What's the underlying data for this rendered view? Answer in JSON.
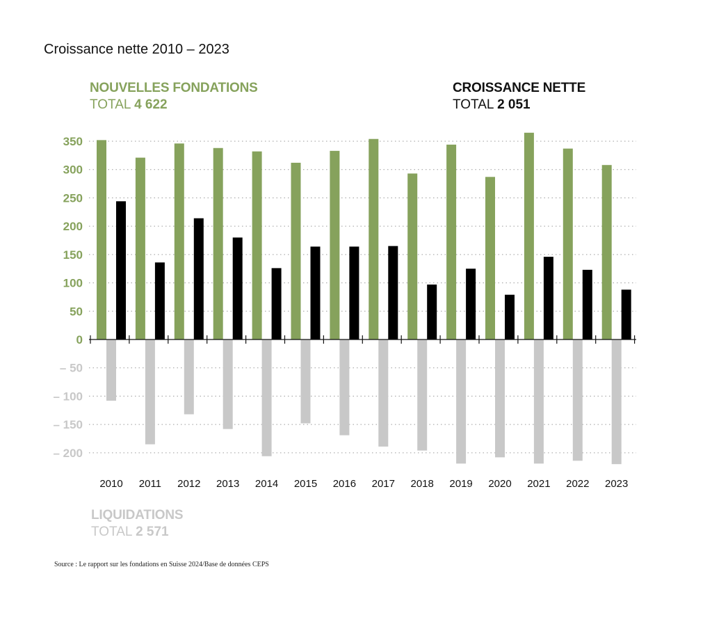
{
  "title": "Croissance nette 2010 – 2023",
  "legend": {
    "new": {
      "name": "NOUVELLES FONDATIONS",
      "total_label": "TOTAL",
      "total_value": "4 622"
    },
    "net": {
      "name": "CROISSANCE NETTE",
      "total_label": "TOTAL",
      "total_value": "2 051"
    },
    "liq": {
      "name": "LIQUIDATIONS",
      "total_label": "TOTAL",
      "total_value": "2 571"
    }
  },
  "source": "Source : Le rapport sur les fondations en Suisse 2024/Base de données CEPS",
  "colors": {
    "new": "#86a25c",
    "net": "#000000",
    "liq": "#c8c8c8",
    "grid": "#9a9a9a",
    "axis": "#111111"
  },
  "chart_data": {
    "type": "bar",
    "categories": [
      "2010",
      "2011",
      "2012",
      "2013",
      "2014",
      "2015",
      "2016",
      "2017",
      "2018",
      "2019",
      "2020",
      "2021",
      "2022",
      "2023"
    ],
    "series": [
      {
        "name": "NOUVELLES FONDATIONS",
        "values": [
          352,
          321,
          346,
          338,
          332,
          312,
          333,
          354,
          293,
          344,
          287,
          365,
          337,
          308
        ]
      },
      {
        "name": "CROISSANCE NETTE",
        "values": [
          244,
          136,
          214,
          180,
          126,
          164,
          164,
          165,
          97,
          125,
          79,
          146,
          123,
          88
        ]
      },
      {
        "name": "LIQUIDATIONS",
        "values": [
          -108,
          -185,
          -132,
          -158,
          -206,
          -148,
          -169,
          -189,
          -196,
          -219,
          -208,
          -219,
          -214,
          -220
        ]
      }
    ],
    "ylim": [
      -220,
      365
    ],
    "yticks": [
      350,
      300,
      250,
      200,
      150,
      100,
      50,
      0,
      -50,
      -100,
      -150,
      -200
    ],
    "ytick_labels": [
      "350",
      "300",
      "250",
      "200",
      "150",
      "100",
      "50",
      "0",
      "– 50",
      "– 100",
      "– 150",
      "– 200"
    ],
    "grid": true
  }
}
